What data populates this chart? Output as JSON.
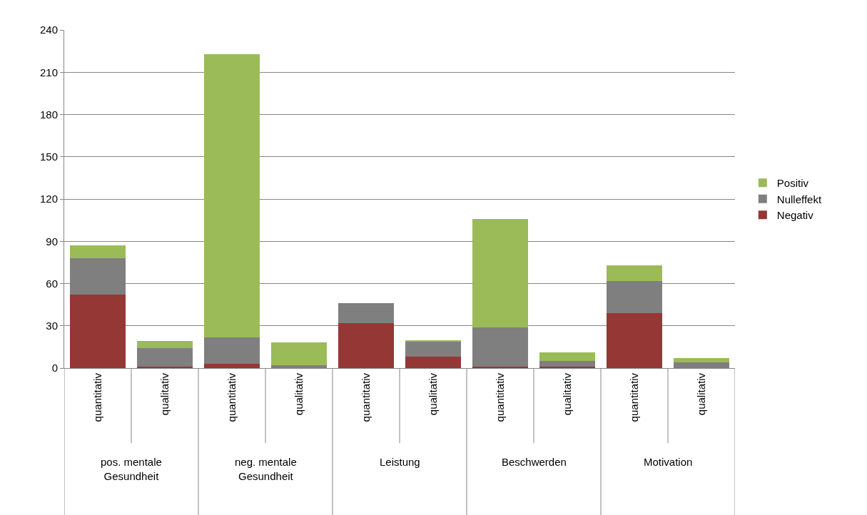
{
  "chart_data": {
    "type": "bar",
    "stacked": true,
    "categories": [
      "quantitativ",
      "qualitativ",
      "quantitativ",
      "qualitativ",
      "quantitativ",
      "qualitativ",
      "quantitativ",
      "qualitativ",
      "quantitativ",
      "qualitativ"
    ],
    "annotations": [
      "pos. mentale Gesundheit",
      "neg. mentale Gesundheit",
      "Leistung",
      "Beschwerden",
      "Motivation"
    ],
    "series": [
      {
        "name": "Negativ",
        "color": "#953735",
        "values": [
          52,
          1,
          3,
          0,
          32,
          8,
          1,
          1,
          39,
          0
        ]
      },
      {
        "name": "Nulleffekt",
        "color": "#7f7f7f",
        "values": [
          26,
          13,
          19,
          2,
          14,
          11,
          28,
          4,
          23,
          4
        ]
      },
      {
        "name": "Positiv",
        "color": "#9bbb59",
        "values": [
          9,
          5,
          201,
          16,
          0,
          1,
          77,
          6,
          11,
          3
        ]
      }
    ],
    "ylim": [
      0,
      240
    ],
    "yticks": [
      0,
      30,
      60,
      90,
      120,
      150,
      180,
      210,
      240
    ],
    "grid": "y",
    "legend": "right"
  }
}
